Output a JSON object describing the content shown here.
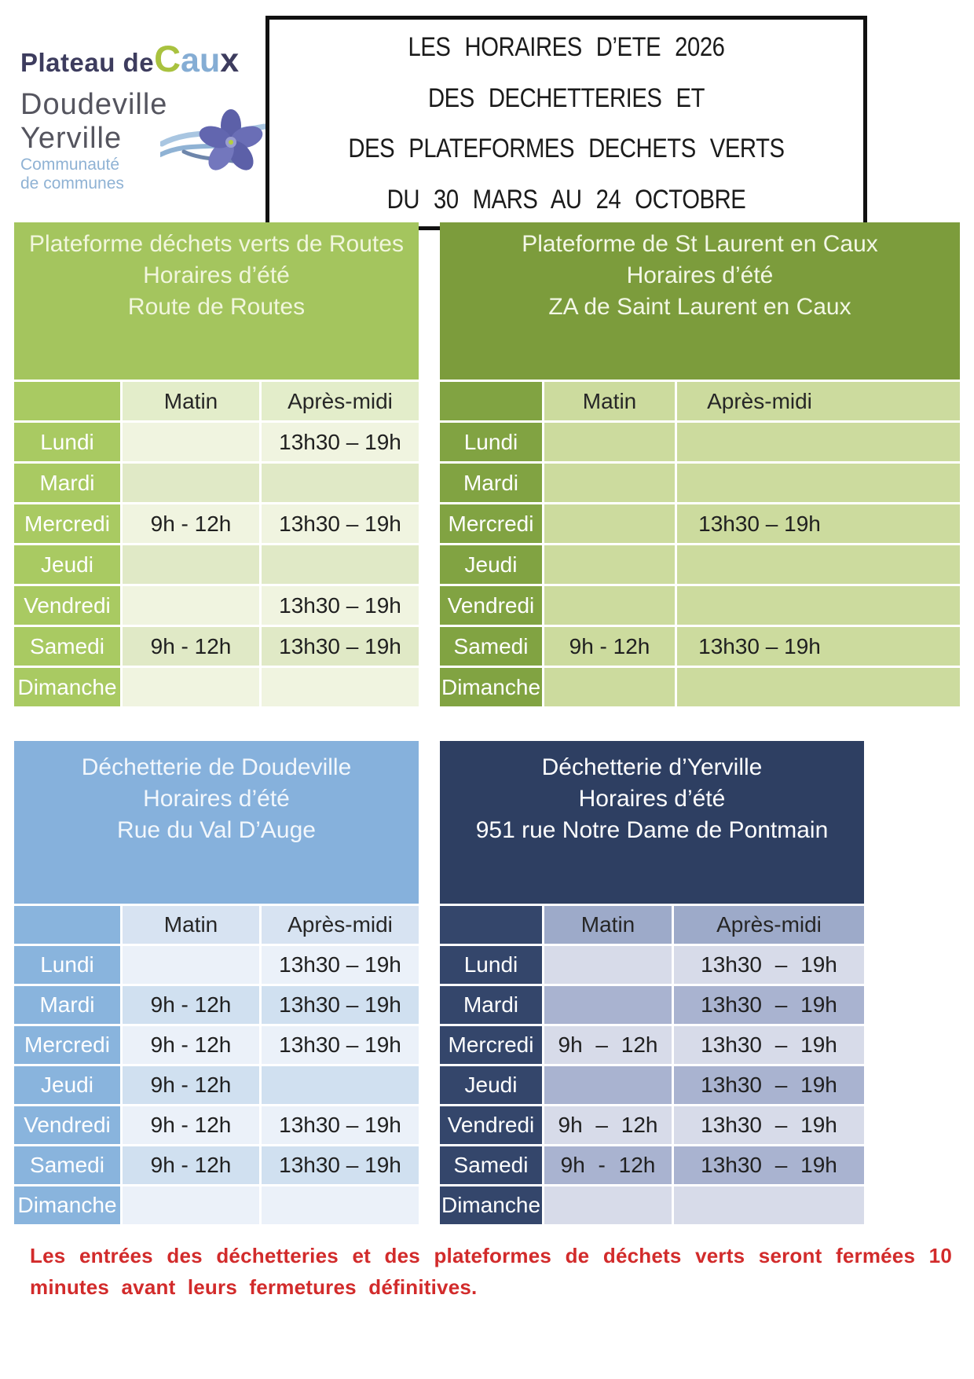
{
  "logo": {
    "plateau_de": "Plateau de",
    "caux_c": "C",
    "caux_au": "au",
    "caux_x": "x",
    "line2": "Doudeville Yerville",
    "line3": "Communauté",
    "line4": "de communes"
  },
  "title_box": {
    "lines": [
      "LES HORAIRES D’ETE 2026",
      "DES DECHETTERIES ET",
      "DES PLATEFORMES DECHETS VERTS",
      "DU 30 MARS AU 24 OCTOBRE"
    ]
  },
  "column_headers": {
    "morning": "Matin",
    "afternoon": "Après-midi"
  },
  "days": [
    "Lundi",
    "Mardi",
    "Mercredi",
    "Jeudi",
    "Vendredi",
    "Samedi",
    "Dimanche"
  ],
  "tables": [
    {
      "id": "routes",
      "title_lines": [
        "Plateforme déchets verts de Routes",
        "Horaires d’été",
        "Route de Routes"
      ],
      "rows": [
        [
          "",
          "13h30 – 19h"
        ],
        [
          "",
          ""
        ],
        [
          "9h - 12h",
          "13h30 – 19h"
        ],
        [
          "",
          ""
        ],
        [
          "",
          "13h30 – 19h"
        ],
        [
          "9h - 12h",
          "13h30 – 19h"
        ],
        [
          "",
          ""
        ]
      ]
    },
    {
      "id": "st-laurent",
      "title_lines": [
        "Plateforme de St Laurent en Caux",
        "Horaires d’été",
        "ZA de Saint Laurent en Caux"
      ],
      "rows": [
        [
          "",
          ""
        ],
        [
          "",
          ""
        ],
        [
          "",
          "13h30 – 19h"
        ],
        [
          "",
          ""
        ],
        [
          "",
          ""
        ],
        [
          "9h - 12h",
          "13h30 – 19h"
        ],
        [
          "",
          ""
        ]
      ]
    },
    {
      "id": "doudeville",
      "title_lines": [
        "Déchetterie de Doudeville",
        "Horaires d’été",
        "Rue du Val D’Auge"
      ],
      "rows": [
        [
          "",
          "13h30 – 19h"
        ],
        [
          "9h - 12h",
          "13h30 – 19h"
        ],
        [
          "9h - 12h",
          "13h30 – 19h"
        ],
        [
          "9h - 12h",
          ""
        ],
        [
          "9h - 12h",
          "13h30 – 19h"
        ],
        [
          "9h - 12h",
          "13h30 – 19h"
        ],
        [
          "",
          ""
        ]
      ]
    },
    {
      "id": "yerville",
      "title_lines": [
        "Déchetterie d’Yerville",
        "Horaires d’été",
        "951 rue Notre Dame de Pontmain"
      ],
      "rows": [
        [
          "",
          "13h30 – 19h"
        ],
        [
          "",
          "13h30 – 19h"
        ],
        [
          "9h – 12h",
          "13h30 – 19h"
        ],
        [
          "",
          "13h30 – 19h"
        ],
        [
          "9h – 12h",
          "13h30 – 19h"
        ],
        [
          "9h - 12h",
          "13h30 – 19h"
        ],
        [
          "",
          ""
        ]
      ]
    }
  ],
  "footer_note": "Les entrées des déchetteries et des plateformes de déchets verts seront fermées 10 minutes avant leurs fermetures définitives.",
  "colors": {
    "routes_green": "#a4c55e",
    "st_laurent_green": "#7c9c3c",
    "doudeville_blue": "#86b1dc",
    "yerville_navy": "#2e3f62",
    "note_red": "#d22b2b",
    "logo_navy": "#3d3c5e",
    "logo_green": "#a9c23f",
    "logo_blue": "#85add4"
  }
}
